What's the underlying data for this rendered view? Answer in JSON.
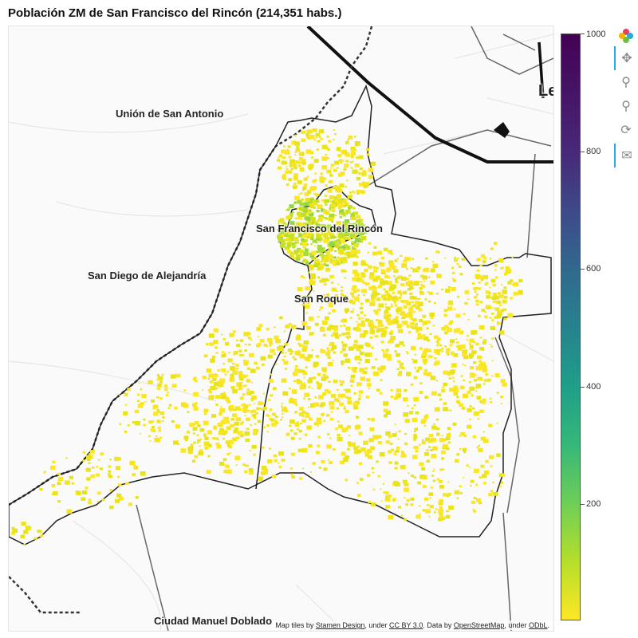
{
  "title": "Población ZM de San Francisco del Rincón (214,351 habs.)",
  "places": {
    "union": "Unión de San Antonio",
    "san_diego": "San Diego de Alejandría",
    "san_francisco": "San Francisco del Rincón",
    "san_roque": "San Roque",
    "ciudad_manuel": "Ciudad Manuel Doblado",
    "leon": "Le"
  },
  "attribution": {
    "prefix": "Map tiles by",
    "stamen": "Stamen Design",
    "under1": ", under",
    "ccby": "CC BY 3.0",
    "mid": ". Data by",
    "osm": "OpenStreetMap",
    "under2": ", under",
    "odbl": "ODbL",
    "end": "."
  },
  "colorbar": {
    "ticks": [
      "1000",
      "800",
      "600",
      "400",
      "200"
    ],
    "values": [
      1000,
      800,
      600,
      400,
      200
    ],
    "min": 0,
    "max": 1000,
    "palette": [
      "#fde725",
      "#6ece58",
      "#1f9e89",
      "#31688e",
      "#440154"
    ]
  },
  "toolbar": [
    "bokeh-logo-icon",
    "pan-icon",
    "box-zoom-icon",
    "wheel-zoom-icon",
    "reset-icon",
    "hover-icon"
  ]
}
